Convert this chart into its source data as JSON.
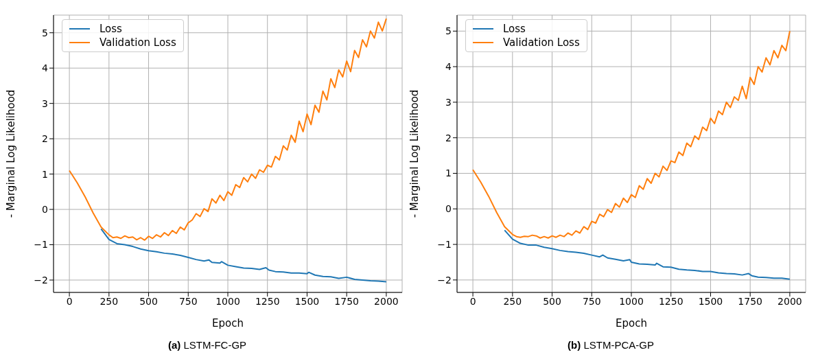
{
  "chart_data": [
    {
      "type": "line",
      "title": "(a) LSTM-FC-GP",
      "xlabel": "Epoch",
      "ylabel": "- Marginal Log Likelihood",
      "xlim": [
        -100,
        2100
      ],
      "ylim": [
        -2.35,
        5.5
      ],
      "xticks": [
        0,
        250,
        500,
        750,
        1000,
        1250,
        1500,
        1750,
        2000
      ],
      "yticks": [
        -2,
        -1,
        0,
        1,
        2,
        3,
        4,
        5
      ],
      "grid": true,
      "legend": "top left",
      "series": [
        {
          "name": "Loss",
          "color": "#1f77b4",
          "x": [
            200,
            250,
            300,
            350,
            400,
            450,
            500,
            550,
            600,
            650,
            700,
            750,
            800,
            850,
            880,
            900,
            950,
            960,
            1000,
            1050,
            1100,
            1150,
            1200,
            1240,
            1260,
            1300,
            1350,
            1400,
            1450,
            1500,
            1510,
            1550,
            1600,
            1650,
            1700,
            1750,
            1800,
            1850,
            1900,
            1950,
            2000
          ],
          "values": [
            -0.55,
            -0.85,
            -0.97,
            -1.0,
            -1.05,
            -1.12,
            -1.17,
            -1.2,
            -1.24,
            -1.26,
            -1.3,
            -1.36,
            -1.42,
            -1.46,
            -1.43,
            -1.5,
            -1.52,
            -1.48,
            -1.58,
            -1.62,
            -1.66,
            -1.67,
            -1.7,
            -1.65,
            -1.72,
            -1.76,
            -1.77,
            -1.8,
            -1.8,
            -1.82,
            -1.78,
            -1.86,
            -1.9,
            -1.91,
            -1.95,
            -1.92,
            -1.98,
            -2.0,
            -2.02,
            -2.03,
            -2.05
          ]
        },
        {
          "name": "Validation Loss",
          "color": "#ff7f0e",
          "x": [
            0,
            50,
            100,
            150,
            200,
            250,
            275,
            300,
            325,
            350,
            375,
            400,
            425,
            450,
            475,
            500,
            525,
            550,
            575,
            600,
            625,
            650,
            675,
            700,
            725,
            750,
            775,
            800,
            825,
            850,
            875,
            900,
            925,
            950,
            975,
            1000,
            1025,
            1050,
            1075,
            1100,
            1125,
            1150,
            1175,
            1200,
            1225,
            1250,
            1275,
            1300,
            1325,
            1350,
            1375,
            1400,
            1425,
            1450,
            1475,
            1500,
            1525,
            1550,
            1575,
            1600,
            1625,
            1650,
            1675,
            1700,
            1725,
            1750,
            1775,
            1800,
            1825,
            1850,
            1875,
            1900,
            1925,
            1950,
            1975,
            2000
          ],
          "values": [
            1.1,
            0.75,
            0.35,
            -0.1,
            -0.5,
            -0.72,
            -0.8,
            -0.78,
            -0.82,
            -0.75,
            -0.8,
            -0.78,
            -0.86,
            -0.8,
            -0.87,
            -0.76,
            -0.82,
            -0.72,
            -0.78,
            -0.66,
            -0.74,
            -0.6,
            -0.68,
            -0.5,
            -0.58,
            -0.38,
            -0.3,
            -0.12,
            -0.2,
            0.02,
            -0.06,
            0.3,
            0.18,
            0.4,
            0.25,
            0.5,
            0.4,
            0.7,
            0.62,
            0.9,
            0.78,
            1.0,
            0.88,
            1.12,
            1.05,
            1.25,
            1.2,
            1.5,
            1.4,
            1.8,
            1.68,
            2.1,
            1.9,
            2.5,
            2.2,
            2.7,
            2.4,
            2.95,
            2.75,
            3.35,
            3.1,
            3.7,
            3.45,
            3.95,
            3.75,
            4.2,
            3.9,
            4.5,
            4.3,
            4.8,
            4.6,
            5.05,
            4.85,
            5.3,
            5.05,
            5.4
          ]
        }
      ]
    },
    {
      "type": "line",
      "title": "(b) LSTM-PCA-GP",
      "xlabel": "Epoch",
      "ylabel": "- Marginal Log Likelihood",
      "xlim": [
        -100,
        2100
      ],
      "ylim": [
        -2.35,
        5.45
      ],
      "xticks": [
        0,
        250,
        500,
        750,
        1000,
        1250,
        1500,
        1750,
        2000
      ],
      "yticks": [
        -2,
        -1,
        0,
        1,
        2,
        3,
        4,
        5
      ],
      "grid": true,
      "legend": "top left",
      "series": [
        {
          "name": "Loss",
          "color": "#1f77b4",
          "x": [
            200,
            250,
            300,
            350,
            400,
            450,
            500,
            550,
            600,
            650,
            700,
            750,
            800,
            820,
            850,
            900,
            950,
            990,
            1000,
            1050,
            1100,
            1150,
            1160,
            1200,
            1250,
            1300,
            1350,
            1400,
            1450,
            1500,
            1550,
            1600,
            1650,
            1700,
            1740,
            1760,
            1800,
            1850,
            1900,
            1950,
            2000
          ],
          "values": [
            -0.6,
            -0.85,
            -0.97,
            -1.02,
            -1.02,
            -1.08,
            -1.12,
            -1.17,
            -1.2,
            -1.22,
            -1.25,
            -1.3,
            -1.35,
            -1.3,
            -1.38,
            -1.42,
            -1.46,
            -1.43,
            -1.5,
            -1.55,
            -1.56,
            -1.58,
            -1.53,
            -1.63,
            -1.64,
            -1.7,
            -1.72,
            -1.73,
            -1.76,
            -1.76,
            -1.8,
            -1.82,
            -1.83,
            -1.86,
            -1.82,
            -1.88,
            -1.92,
            -1.93,
            -1.95,
            -1.95,
            -1.98
          ]
        },
        {
          "name": "Validation Loss",
          "color": "#ff7f0e",
          "x": [
            0,
            50,
            100,
            150,
            200,
            250,
            275,
            300,
            325,
            350,
            375,
            400,
            425,
            450,
            475,
            500,
            525,
            550,
            575,
            600,
            625,
            650,
            675,
            700,
            725,
            750,
            775,
            800,
            825,
            850,
            875,
            900,
            925,
            950,
            975,
            1000,
            1025,
            1050,
            1075,
            1100,
            1125,
            1150,
            1175,
            1200,
            1225,
            1250,
            1275,
            1300,
            1325,
            1350,
            1375,
            1400,
            1425,
            1450,
            1475,
            1500,
            1525,
            1550,
            1575,
            1600,
            1625,
            1650,
            1675,
            1700,
            1725,
            1750,
            1775,
            1800,
            1825,
            1850,
            1875,
            1900,
            1925,
            1950,
            1975,
            2000
          ],
          "values": [
            1.1,
            0.75,
            0.35,
            -0.1,
            -0.5,
            -0.72,
            -0.78,
            -0.8,
            -0.77,
            -0.78,
            -0.74,
            -0.76,
            -0.82,
            -0.78,
            -0.82,
            -0.76,
            -0.8,
            -0.74,
            -0.78,
            -0.68,
            -0.74,
            -0.62,
            -0.68,
            -0.5,
            -0.58,
            -0.35,
            -0.4,
            -0.15,
            -0.22,
            -0.02,
            -0.1,
            0.15,
            0.05,
            0.3,
            0.18,
            0.4,
            0.32,
            0.65,
            0.55,
            0.85,
            0.72,
            1.0,
            0.9,
            1.2,
            1.08,
            1.35,
            1.3,
            1.6,
            1.5,
            1.85,
            1.75,
            2.05,
            1.95,
            2.3,
            2.2,
            2.55,
            2.4,
            2.75,
            2.65,
            3.0,
            2.85,
            3.15,
            3.05,
            3.45,
            3.1,
            3.7,
            3.5,
            4.0,
            3.85,
            4.25,
            4.05,
            4.45,
            4.25,
            4.6,
            4.45,
            5.0
          ]
        }
      ]
    }
  ]
}
